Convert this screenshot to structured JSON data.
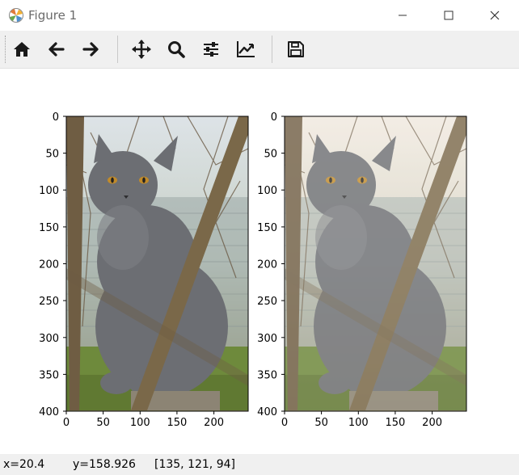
{
  "window": {
    "title": "Figure 1"
  },
  "toolbar": {
    "buttons": [
      {
        "name": "home",
        "icon": "home-icon"
      },
      {
        "name": "back",
        "icon": "arrow-left-icon"
      },
      {
        "name": "forward",
        "icon": "arrow-right-icon"
      },
      {
        "name": "pan",
        "icon": "move-icon"
      },
      {
        "name": "zoom",
        "icon": "magnifier-icon"
      },
      {
        "name": "subplots",
        "icon": "sliders-icon"
      },
      {
        "name": "edit-axis",
        "icon": "line-chart-icon"
      },
      {
        "name": "save",
        "icon": "floppy-disk-icon"
      }
    ]
  },
  "axes": [
    {
      "x_ticks": [
        "0",
        "50",
        "100",
        "150",
        "200"
      ],
      "y_ticks": [
        "0",
        "50",
        "100",
        "150",
        "200",
        "250",
        "300",
        "350",
        "400"
      ],
      "image": "gray cat sitting among branches (original)"
    },
    {
      "x_ticks": [
        "0",
        "50",
        "100",
        "150",
        "200"
      ],
      "y_ticks": [
        "0",
        "50",
        "100",
        "150",
        "200",
        "250",
        "300",
        "350",
        "400"
      ],
      "image": "gray cat sitting among branches (processed, lighter)"
    }
  ],
  "status": {
    "x": "x=20.4",
    "y": "y=158.926",
    "rgb": "[135, 121, 94]"
  },
  "colors": {
    "toolbar_bg": "#f0f0f0",
    "icon": "#1a1a1a",
    "cat": "#6c6e73"
  }
}
